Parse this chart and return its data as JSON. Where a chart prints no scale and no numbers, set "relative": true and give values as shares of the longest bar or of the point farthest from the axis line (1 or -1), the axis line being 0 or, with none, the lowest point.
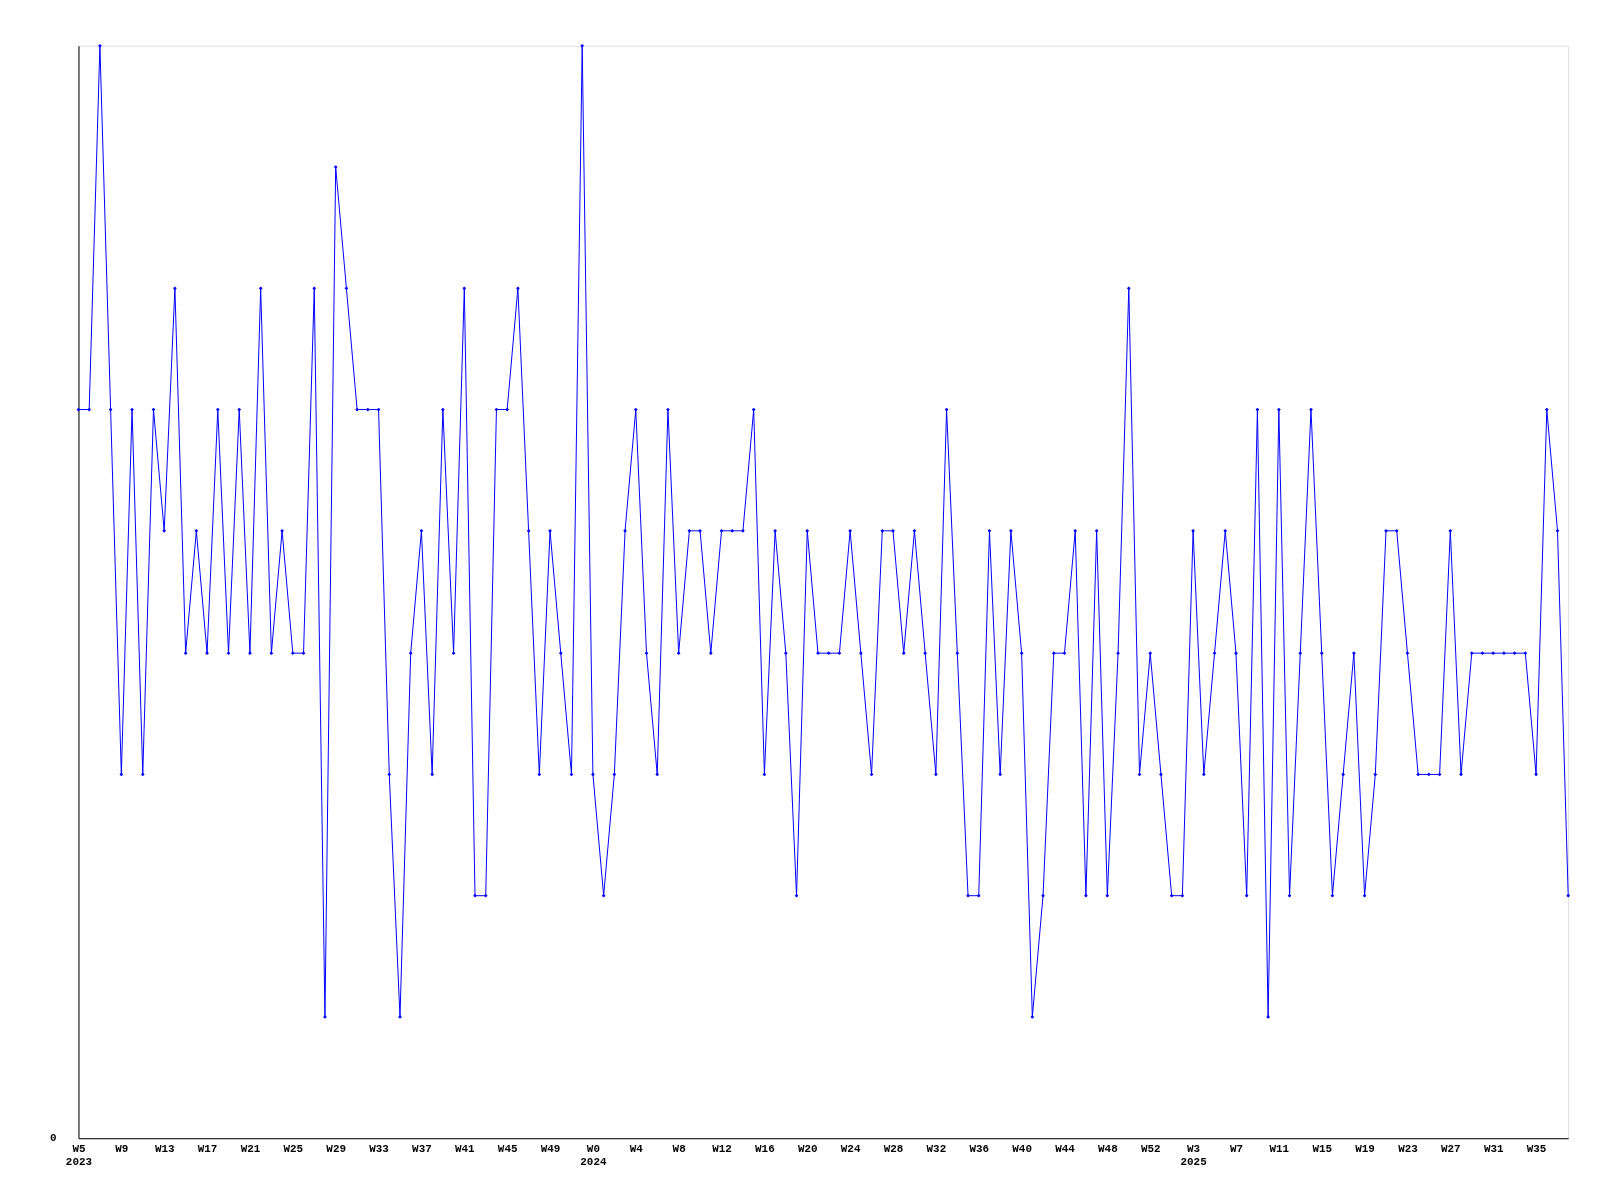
{
  "chart_data": {
    "type": "line",
    "relative": true,
    "marker": "diamond",
    "line_style": "solid",
    "grid": false,
    "categories": [
      "W5 2023",
      null,
      null,
      null,
      "W9",
      null,
      null,
      null,
      "W13",
      null,
      null,
      null,
      "W17",
      null,
      null,
      null,
      "W21",
      null,
      null,
      null,
      "W25",
      null,
      null,
      null,
      "W29",
      null,
      null,
      null,
      "W33",
      null,
      null,
      null,
      "W37",
      null,
      null,
      null,
      "W41",
      null,
      null,
      null,
      "W45",
      null,
      null,
      null,
      "W49",
      null,
      null,
      null,
      "W0 2024",
      null,
      null,
      null,
      "W4",
      null,
      null,
      null,
      "W8",
      null,
      null,
      null,
      "W12",
      null,
      null,
      null,
      "W16",
      null,
      null,
      null,
      "W20",
      null,
      null,
      null,
      "W24",
      null,
      null,
      null,
      "W28",
      null,
      null,
      null,
      "W32",
      null,
      null,
      null,
      "W36",
      null,
      null,
      null,
      "W40",
      null,
      null,
      null,
      "W44",
      null,
      null,
      null,
      "W48",
      null,
      null,
      null,
      "W52",
      null,
      null,
      null,
      "W3 2025",
      null,
      null,
      null,
      "W7",
      null,
      null,
      null,
      "W11",
      null,
      null,
      null,
      "W15",
      null,
      null,
      null,
      "W19",
      null,
      null,
      null,
      "W23",
      null,
      null,
      null,
      "W27",
      null,
      null,
      null,
      "W31",
      null,
      null,
      null,
      "W35",
      null,
      null,
      null
    ],
    "series": [
      {
        "color": "#0000ff",
        "values": [
          0.667,
          0.667,
          1,
          0.667,
          0.333,
          0.667,
          0.333,
          0.667,
          0.556,
          0.778,
          0.444,
          0.556,
          0.444,
          0.667,
          0.444,
          0.667,
          0.444,
          0.778,
          0.444,
          0.556,
          0.444,
          0.444,
          0.778,
          0.111,
          0.889,
          0.778,
          0.667,
          0.667,
          0.667,
          0.333,
          0.111,
          0.444,
          0.556,
          0.333,
          0.667,
          0.444,
          0.778,
          0.222,
          0.222,
          0.667,
          0.667,
          0.778,
          0.556,
          0.333,
          0.556,
          0.444,
          0.333,
          1,
          0.333,
          0.222,
          0.333,
          0.556,
          0.667,
          0.444,
          0.333,
          0.667,
          0.444,
          0.556,
          0.556,
          0.444,
          0.556,
          0.556,
          0.556,
          0.667,
          0.333,
          0.556,
          0.444,
          0.222,
          0.556,
          0.444,
          0.444,
          0.444,
          0.556,
          0.444,
          0.333,
          0.556,
          0.556,
          0.444,
          0.556,
          0.444,
          0.333,
          0.667,
          0.444,
          0.222,
          0.222,
          0.556,
          0.333,
          0.556,
          0.444,
          0.111,
          0.222,
          0.444,
          0.444,
          0.556,
          0.222,
          0.556,
          0.222,
          0.444,
          0.778,
          0.333,
          0.444,
          0.333,
          0.222,
          0.222,
          0.556,
          0.333,
          0.444,
          0.556,
          0.444,
          0.222,
          0.667,
          0.111,
          0.667,
          0.222,
          0.444,
          0.667,
          0.444,
          0.222,
          0.333,
          0.444,
          0.222,
          0.333,
          0.556,
          0.556,
          0.444,
          0.333,
          0.333,
          0.333,
          0.556,
          0.333,
          0.444,
          0.444,
          0.444,
          0.444,
          0.444,
          0.444,
          0.333,
          0.667,
          0.556,
          0.222
        ]
      }
    ],
    "annotations": [
      "0"
    ]
  }
}
